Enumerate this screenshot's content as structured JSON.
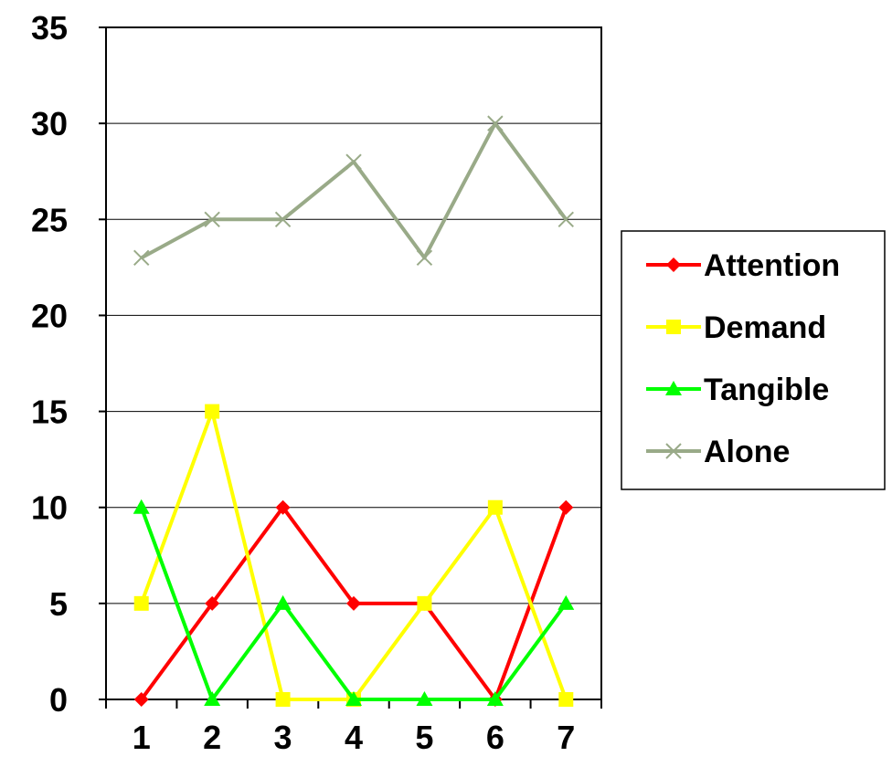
{
  "chart_data": {
    "type": "line",
    "title": "",
    "xlabel": "",
    "ylabel": "",
    "categories": [
      "1",
      "2",
      "3",
      "4",
      "5",
      "6",
      "7"
    ],
    "ylim": [
      0,
      35
    ],
    "yticks": [
      0,
      5,
      10,
      15,
      20,
      25,
      30,
      35
    ],
    "grid": "horizontal",
    "legend_position": "right",
    "series": [
      {
        "name": "Attention",
        "color": "#ff0000",
        "marker": "diamond",
        "values": [
          0,
          5,
          10,
          5,
          5,
          0,
          10
        ]
      },
      {
        "name": "Demand",
        "color": "#ffff00",
        "marker": "square",
        "values": [
          5,
          15,
          0,
          0,
          5,
          10,
          0
        ]
      },
      {
        "name": "Tangible",
        "color": "#00ff00",
        "marker": "triangle",
        "values": [
          10,
          0,
          5,
          0,
          0,
          0,
          5
        ]
      },
      {
        "name": "Alone",
        "color": "#99aa88",
        "marker": "x",
        "values": [
          23,
          25,
          25,
          28,
          23,
          30,
          25
        ]
      }
    ]
  }
}
